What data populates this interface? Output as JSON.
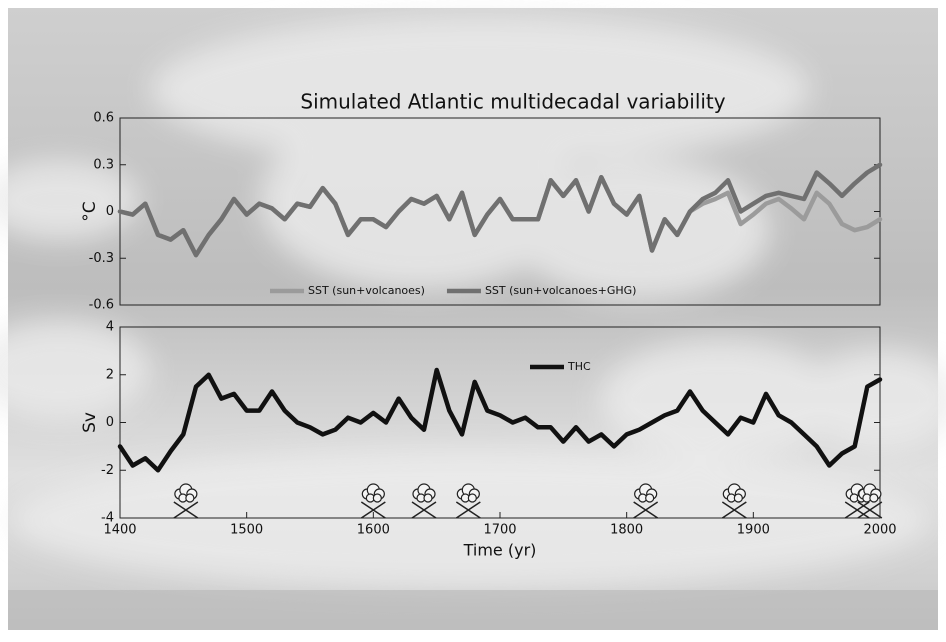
{
  "title": "Simulated Atlantic multidecadal variability",
  "chart_data": [
    {
      "type": "line",
      "ylabel": "°C",
      "x": [
        1400,
        1410,
        1420,
        1430,
        1440,
        1450,
        1460,
        1470,
        1480,
        1490,
        1500,
        1510,
        1520,
        1530,
        1540,
        1550,
        1560,
        1570,
        1580,
        1590,
        1600,
        1610,
        1620,
        1630,
        1640,
        1650,
        1660,
        1670,
        1680,
        1690,
        1700,
        1710,
        1720,
        1730,
        1740,
        1750,
        1760,
        1770,
        1780,
        1790,
        1800,
        1810,
        1820,
        1830,
        1840,
        1850,
        1860,
        1870,
        1880,
        1890,
        1900,
        1910,
        1920,
        1930,
        1940,
        1950,
        1960,
        1970,
        1980,
        1990,
        2000
      ],
      "series": [
        {
          "name": "SST (sun+volcanoes)",
          "color": "#9b9b9b",
          "values": [
            0,
            -0.02,
            0.05,
            -0.15,
            -0.18,
            -0.12,
            -0.28,
            -0.15,
            -0.05,
            0.08,
            -0.02,
            0.05,
            0.02,
            -0.05,
            0.05,
            0.03,
            0.15,
            0.05,
            -0.15,
            -0.05,
            -0.05,
            -0.1,
            0,
            0.08,
            0.05,
            0.1,
            -0.05,
            0.12,
            -0.15,
            -0.02,
            0.08,
            -0.05,
            -0.05,
            -0.05,
            0.2,
            0.1,
            0.2,
            0,
            0.22,
            0.05,
            -0.02,
            0.1,
            -0.25,
            -0.05,
            -0.15,
            0,
            0.05,
            0.08,
            0.12,
            -0.08,
            -0.02,
            0.05,
            0.08,
            0.02,
            -0.05,
            0.12,
            0.05,
            -0.08,
            -0.12,
            -0.1,
            -0.05
          ]
        },
        {
          "name": "SST (sun+volcanoes+GHG)",
          "color": "#707070",
          "values": [
            0,
            -0.02,
            0.05,
            -0.15,
            -0.18,
            -0.12,
            -0.28,
            -0.15,
            -0.05,
            0.08,
            -0.02,
            0.05,
            0.02,
            -0.05,
            0.05,
            0.03,
            0.15,
            0.05,
            -0.15,
            -0.05,
            -0.05,
            -0.1,
            0,
            0.08,
            0.05,
            0.1,
            -0.05,
            0.12,
            -0.15,
            -0.02,
            0.08,
            -0.05,
            -0.05,
            -0.05,
            0.2,
            0.1,
            0.2,
            0,
            0.22,
            0.05,
            -0.02,
            0.1,
            -0.25,
            -0.05,
            -0.15,
            0,
            0.08,
            0.12,
            0.2,
            0,
            0.05,
            0.1,
            0.12,
            0.1,
            0.08,
            0.25,
            0.18,
            0.1,
            0.18,
            0.25,
            0.3
          ]
        }
      ],
      "xlim": [
        1400,
        2000
      ],
      "ylim": [
        -0.6,
        0.6
      ],
      "yticks": [
        0.6,
        0.3,
        0,
        -0.3,
        -0.6
      ],
      "legend": "lower center"
    },
    {
      "type": "line",
      "ylabel": "Sv",
      "xlabel": "Time (yr)",
      "x": [
        1400,
        1410,
        1420,
        1430,
        1440,
        1450,
        1460,
        1470,
        1480,
        1490,
        1500,
        1510,
        1520,
        1530,
        1540,
        1550,
        1560,
        1570,
        1580,
        1590,
        1600,
        1610,
        1620,
        1630,
        1640,
        1650,
        1660,
        1670,
        1680,
        1690,
        1700,
        1710,
        1720,
        1730,
        1740,
        1750,
        1760,
        1770,
        1780,
        1790,
        1800,
        1810,
        1820,
        1830,
        1840,
        1850,
        1860,
        1870,
        1880,
        1890,
        1900,
        1910,
        1920,
        1930,
        1940,
        1950,
        1960,
        1970,
        1980,
        1990,
        2000
      ],
      "series": [
        {
          "name": "THC",
          "color": "#111111",
          "values": [
            -1,
            -1.8,
            -1.5,
            -2,
            -1.2,
            -0.5,
            1.5,
            2,
            1,
            1.2,
            0.5,
            0.5,
            1.3,
            0.5,
            0,
            -0.2,
            -0.5,
            -0.3,
            0.2,
            0,
            0.4,
            0,
            1,
            0.2,
            -0.3,
            2.2,
            0.5,
            -0.5,
            1.7,
            0.5,
            0.3,
            0,
            0.2,
            -0.2,
            -0.2,
            -0.8,
            -0.2,
            -0.8,
            -0.5,
            -1,
            -0.5,
            -0.3,
            0,
            0.3,
            0.5,
            1.3,
            0.5,
            0,
            -0.5,
            0.2,
            0,
            1.2,
            0.3,
            0,
            -0.5,
            -1,
            -1.8,
            -1.3,
            -1,
            1.5,
            1.8
          ]
        }
      ],
      "volcanoes": [
        1452,
        1600,
        1640,
        1675,
        1815,
        1885,
        1982,
        1992
      ],
      "xlim": [
        1400,
        2000
      ],
      "xticks": [
        1400,
        1500,
        1600,
        1700,
        1800,
        1900,
        2000
      ],
      "ylim": [
        -4,
        4
      ],
      "yticks": [
        4,
        2,
        0,
        -2,
        -4
      ],
      "legend": "upper center"
    }
  ]
}
